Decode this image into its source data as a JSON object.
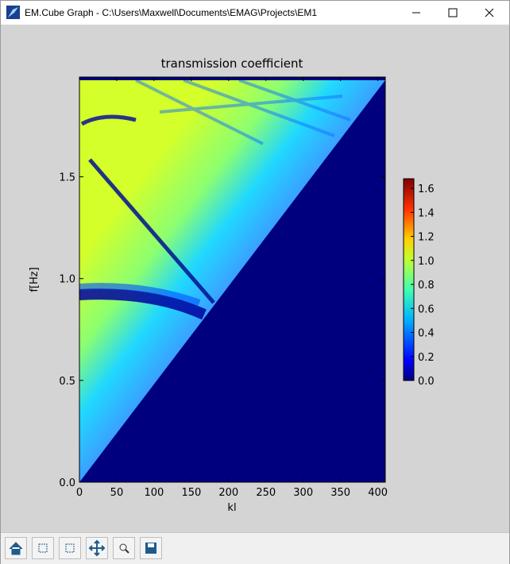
{
  "window": {
    "title": "EM.Cube Graph - C:\\Users\\Maxwell\\Documents\\EMAG\\Projects\\EM1"
  },
  "chart_data": {
    "type": "heatmap",
    "title": "transmission coefficient",
    "x_label": "kl",
    "y_label": "f[Hz]",
    "xlim": [
      0,
      410
    ],
    "ylim": [
      0,
      1.99
    ],
    "xticks": [
      0,
      50,
      100,
      150,
      200,
      250,
      300,
      350,
      400
    ],
    "yticks": [
      {
        "value": 0,
        "label": "0.0"
      },
      {
        "value": 0.5,
        "label": "0.5"
      },
      {
        "value": 1,
        "label": "1.0"
      },
      {
        "value": 1.5,
        "label": "1.5"
      }
    ],
    "colorbar": {
      "lim": [
        0,
        1.68
      ],
      "ticks": [
        {
          "value": 0,
          "label": "0.0"
        },
        {
          "value": 0.2,
          "label": "0.2"
        },
        {
          "value": 0.4,
          "label": "0.4"
        },
        {
          "value": 0.6,
          "label": "0.6"
        },
        {
          "value": 0.8,
          "label": "0.8"
        },
        {
          "value": 1,
          "label": "1.0"
        },
        {
          "value": 1.2,
          "label": "1.2"
        },
        {
          "value": 1.4,
          "label": "1.4"
        },
        {
          "value": 1.6,
          "label": "1.6"
        }
      ],
      "colormap": "jet"
    }
  }
}
